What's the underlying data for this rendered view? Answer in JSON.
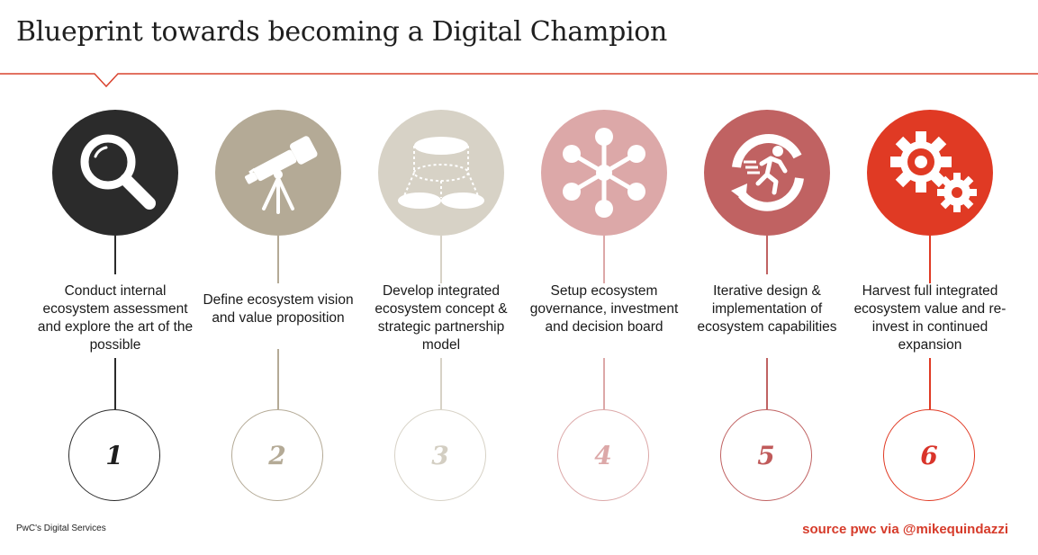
{
  "title": "Blueprint towards becoming a Digital Champion",
  "colors": {
    "accent_red": "#d9432f",
    "rule": "#d9432f"
  },
  "steps": [
    {
      "number": "1",
      "description": "Conduct internal ecosystem assessment and explore the art of the possible",
      "icon": "magnifier-icon",
      "color": "#2b2b2b",
      "num_color": "#1e1e1e"
    },
    {
      "number": "2",
      "description": "Define ecosystem vision and value proposition",
      "icon": "telescope-icon",
      "color": "#b4aa96",
      "num_color": "#b4aa96"
    },
    {
      "number": "3",
      "description": "Develop integrated ecosystem concept & strategic partnership model",
      "icon": "layers-icon",
      "color": "#d7d2c6",
      "num_color": "#d3cec2"
    },
    {
      "number": "4",
      "description": "Setup ecosystem governance, investment and decision board",
      "icon": "network-hub-icon",
      "color": "#dca8a8",
      "num_color": "#dca8a8"
    },
    {
      "number": "5",
      "description": "Iterative design & implementation of ecosystem capabilities",
      "icon": "runner-cycle-icon",
      "color": "#c06262",
      "num_color": "#c05a5a"
    },
    {
      "number": "6",
      "description": "Harvest full integrated ecosystem value and re-invest in continued expansion",
      "icon": "gears-icon",
      "color": "#e03a24",
      "num_color": "#d9342a"
    }
  ],
  "footer": {
    "left": "PwC's Digital Services",
    "right": "source pwc via @mikequindazzi"
  }
}
